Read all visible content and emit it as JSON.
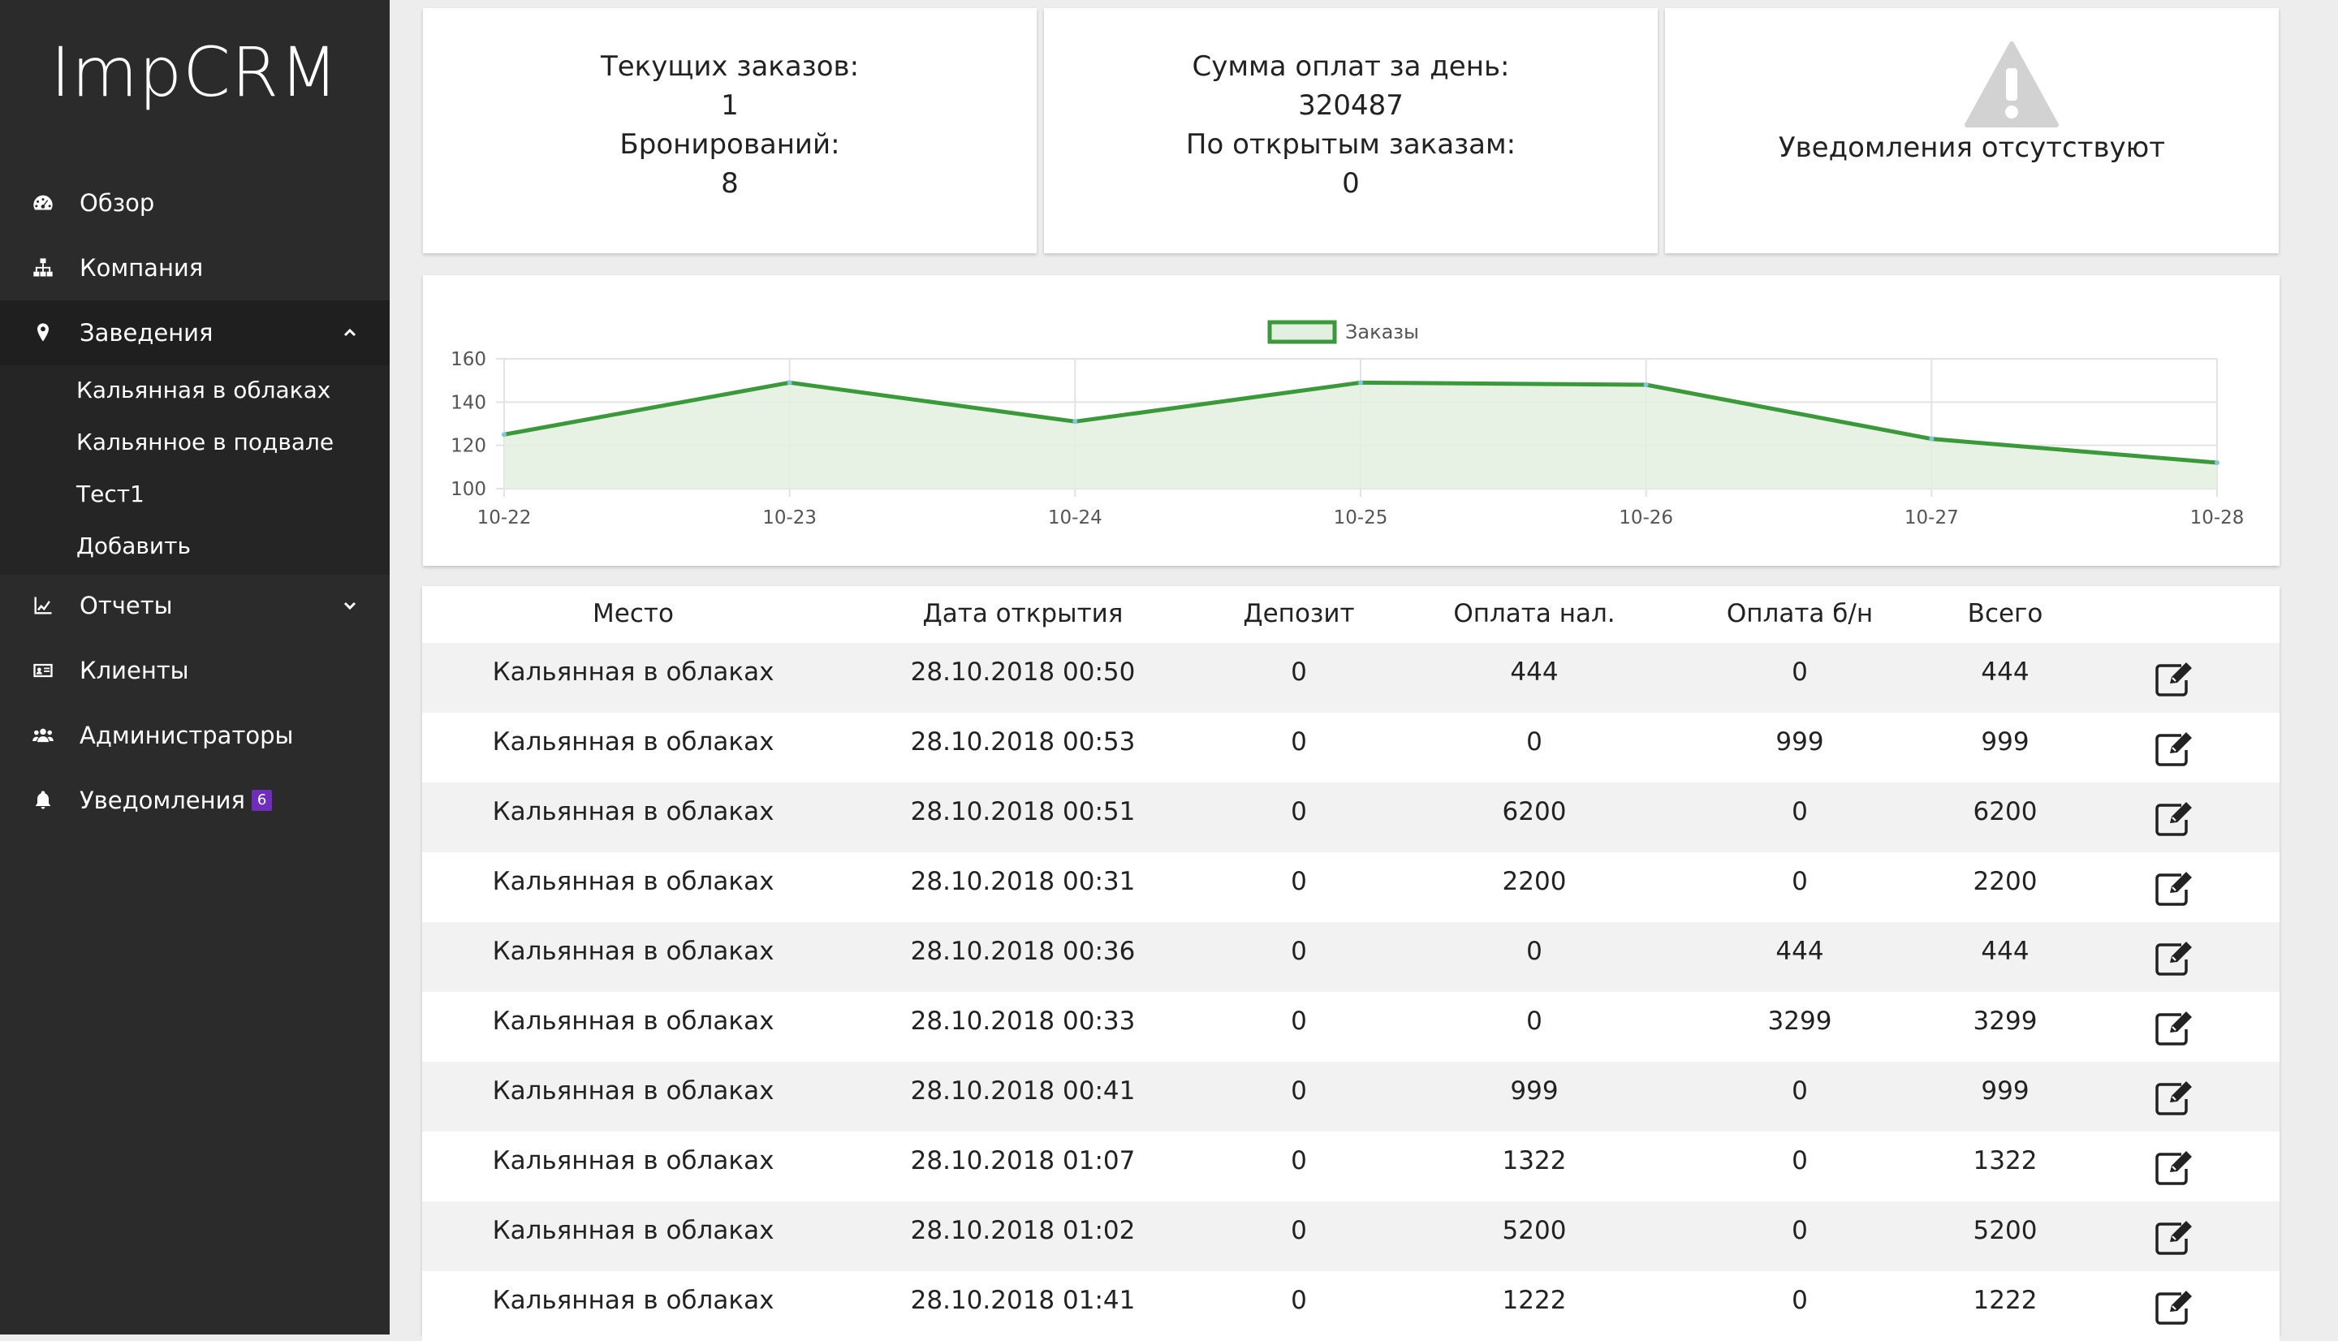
{
  "app": {
    "title": "ImpCRM"
  },
  "sidebar": {
    "items": [
      {
        "label": "Обзор",
        "icon": "dashboard-icon"
      },
      {
        "label": "Компания",
        "icon": "sitemap-icon"
      },
      {
        "label": "Заведения",
        "icon": "map-pin-icon",
        "expanded": true
      },
      {
        "label": "Отчеты",
        "icon": "line-chart-icon"
      },
      {
        "label": "Клиенты",
        "icon": "id-card-icon"
      },
      {
        "label": "Администраторы",
        "icon": "users-icon"
      },
      {
        "label": "Уведомления",
        "icon": "bell-icon",
        "badge": "6"
      }
    ],
    "subitems": [
      "Кальянная в облаках",
      "Кальянное в подвале",
      "Тест1",
      "Добавить"
    ]
  },
  "stats": {
    "orders_label": "Текущих заказов:",
    "orders_value": "1",
    "bookings_label": "Бронирований:",
    "bookings_value": "8",
    "payments_label": "Сумма оплат за день:",
    "payments_value": "320487",
    "open_label": "По открытым заказам:",
    "open_value": "0",
    "notifications_text": "Уведомления отсутствуют"
  },
  "chart_data": {
    "type": "area",
    "categories": [
      "10-22",
      "10-23",
      "10-24",
      "10-25",
      "10-26",
      "10-27",
      "10-28"
    ],
    "series": [
      {
        "name": "Заказы",
        "values": [
          125,
          149,
          131,
          149,
          148,
          123,
          112
        ]
      }
    ],
    "ylim": [
      100,
      160
    ],
    "yticks": [
      100,
      120,
      140,
      160
    ],
    "grid": true,
    "legend": "top-center",
    "colors": {
      "line": "#3a9a3a",
      "fill": "#e3f0e1"
    }
  },
  "table": {
    "columns": [
      "Место",
      "Дата открытия",
      "Депозит",
      "Оплата нал.",
      "Оплата б/н",
      "Всего"
    ],
    "rows": [
      [
        "Кальянная в облаках",
        "28.10.2018 00:50",
        "0",
        "444",
        "0",
        "444"
      ],
      [
        "Кальянная в облаках",
        "28.10.2018 00:53",
        "0",
        "0",
        "999",
        "999"
      ],
      [
        "Кальянная в облаках",
        "28.10.2018 00:51",
        "0",
        "6200",
        "0",
        "6200"
      ],
      [
        "Кальянная в облаках",
        "28.10.2018 00:31",
        "0",
        "2200",
        "0",
        "2200"
      ],
      [
        "Кальянная в облаках",
        "28.10.2018 00:36",
        "0",
        "0",
        "444",
        "444"
      ],
      [
        "Кальянная в облаках",
        "28.10.2018 00:33",
        "0",
        "0",
        "3299",
        "3299"
      ],
      [
        "Кальянная в облаках",
        "28.10.2018 00:41",
        "0",
        "999",
        "0",
        "999"
      ],
      [
        "Кальянная в облаках",
        "28.10.2018 01:07",
        "0",
        "1322",
        "0",
        "1322"
      ],
      [
        "Кальянная в облаках",
        "28.10.2018 01:02",
        "0",
        "5200",
        "0",
        "5200"
      ],
      [
        "Кальянная в облаках",
        "28.10.2018 01:41",
        "0",
        "1222",
        "0",
        "1222"
      ]
    ]
  }
}
